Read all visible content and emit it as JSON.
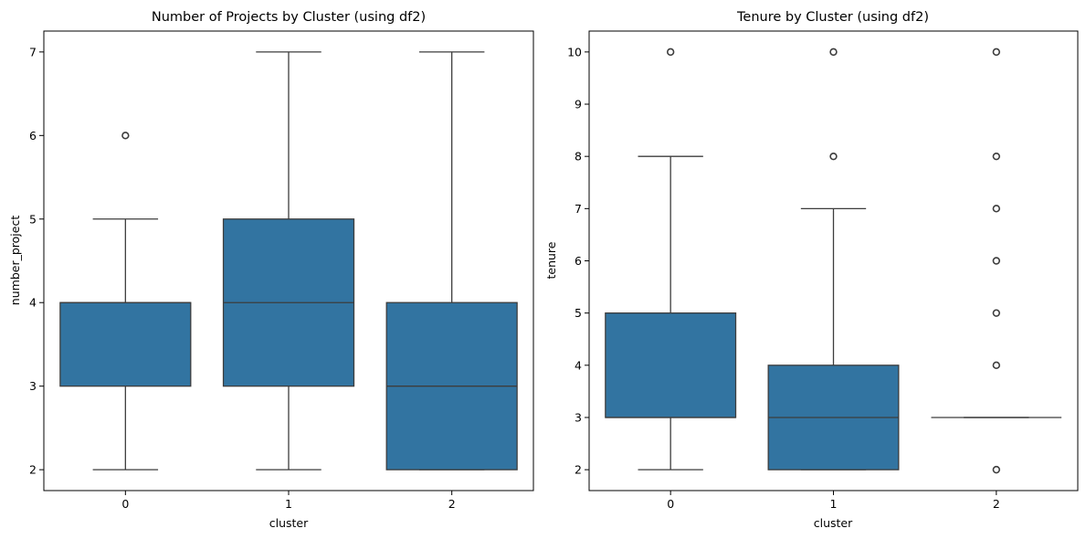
{
  "chart_data": [
    {
      "type": "box",
      "title": "Number of Projects by Cluster (using df2)",
      "xlabel": "cluster",
      "ylabel": "number_project",
      "categories": [
        "0",
        "1",
        "2"
      ],
      "yticks": [
        "2",
        "3",
        "4",
        "5",
        "6",
        "7"
      ],
      "ylim": [
        1.75,
        7.25
      ],
      "color": "#3274a1",
      "boxes": [
        {
          "category": "0",
          "whisker_low": 2,
          "q1": 3,
          "median": 4,
          "q3": 4,
          "whisker_high": 5,
          "outliers": [
            6
          ]
        },
        {
          "category": "1",
          "whisker_low": 2,
          "q1": 3,
          "median": 4,
          "q3": 5,
          "whisker_high": 7,
          "outliers": []
        },
        {
          "category": "2",
          "whisker_low": 2,
          "q1": 2,
          "median": 3,
          "q3": 4,
          "whisker_high": 7,
          "outliers": []
        }
      ]
    },
    {
      "type": "box",
      "title": "Tenure by Cluster (using df2)",
      "xlabel": "cluster",
      "ylabel": "tenure",
      "categories": [
        "0",
        "1",
        "2"
      ],
      "yticks": [
        "2",
        "3",
        "4",
        "5",
        "6",
        "7",
        "8",
        "9",
        "10"
      ],
      "ylim": [
        1.6,
        10.4
      ],
      "color": "#3274a1",
      "boxes": [
        {
          "category": "0",
          "whisker_low": 2,
          "q1": 3,
          "median": 3,
          "q3": 5,
          "whisker_high": 8,
          "outliers": [
            10
          ]
        },
        {
          "category": "1",
          "whisker_low": 2,
          "q1": 2,
          "median": 3,
          "q3": 4,
          "whisker_high": 7,
          "outliers": [
            8,
            10
          ]
        },
        {
          "category": "2",
          "whisker_low": 3,
          "q1": 3,
          "median": 3,
          "q3": 3,
          "whisker_high": 3,
          "outliers": [
            2,
            4,
            5,
            6,
            7,
            8,
            10
          ]
        }
      ]
    }
  ]
}
